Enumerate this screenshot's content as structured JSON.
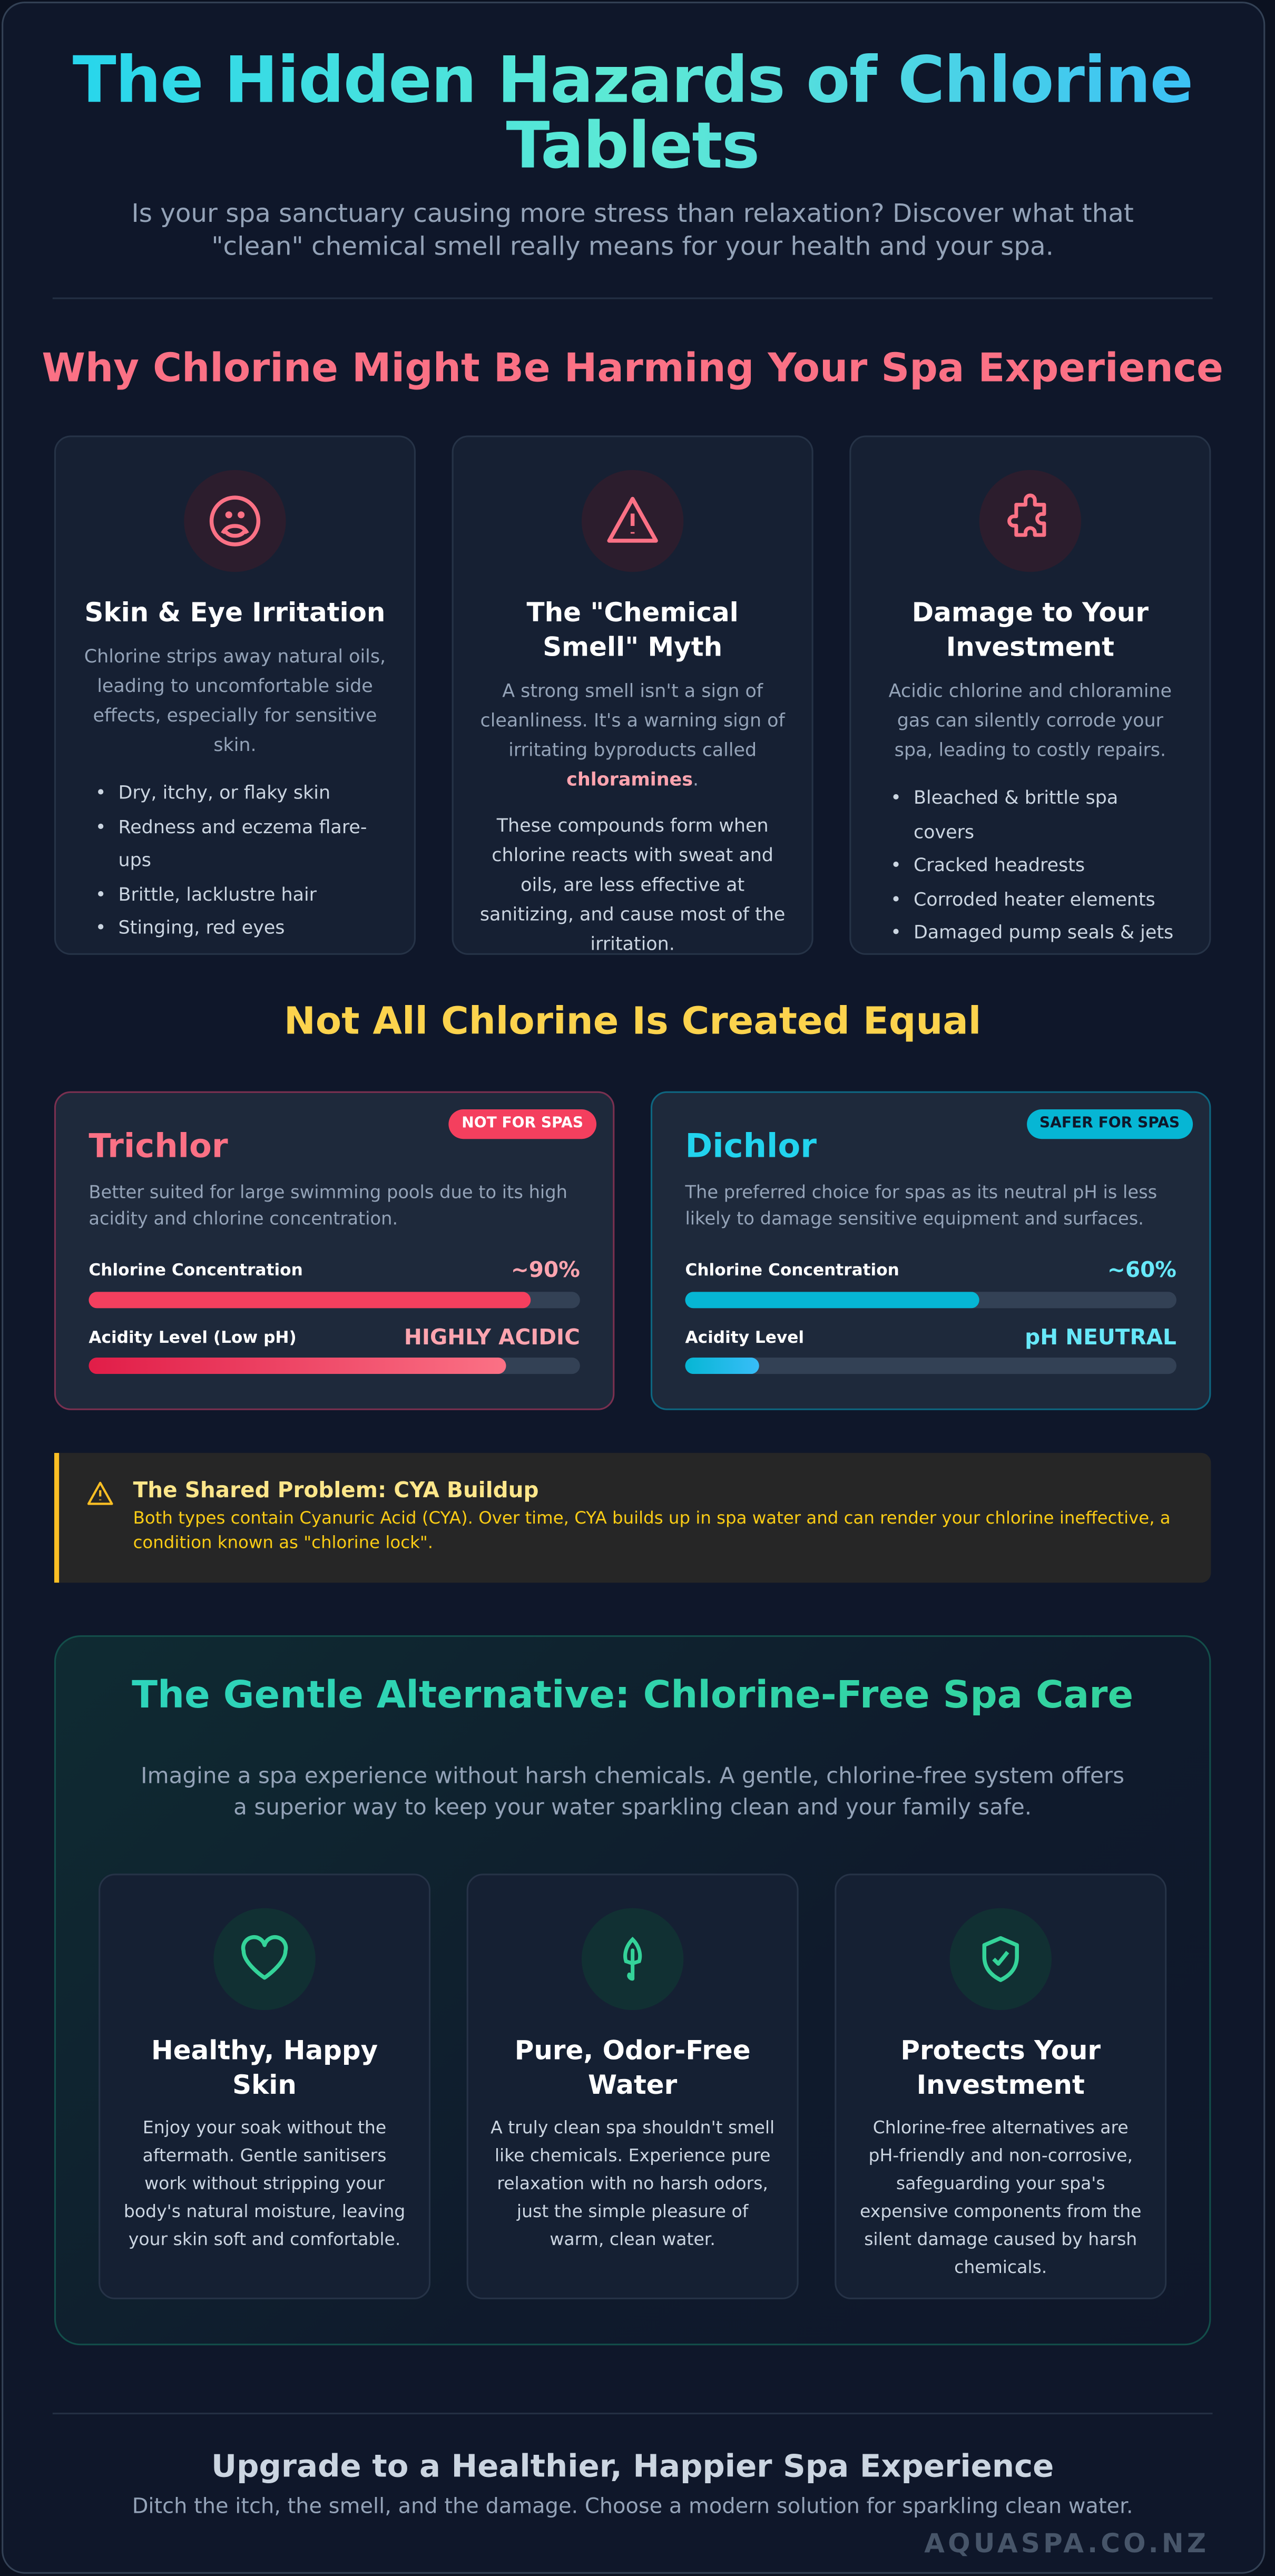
{
  "header": {
    "title": "The Hidden Hazards of Chlorine Tablets",
    "subtitle": "Is your spa sanctuary causing more stress than relaxation? Discover what that \"clean\" chemical smell really means for your health and your spa."
  },
  "harms": {
    "heading": "Why Chlorine Might Be Harming Your Spa Experience",
    "cards": [
      {
        "icon": "sad-face-icon",
        "title": "Skin & Eye Irritation",
        "body": "Chlorine strips away natural oils, leading to uncomfortable side effects, especially for sensitive skin.",
        "bullets": [
          "Dry, itchy, or flaky skin",
          "Redness and eczema flare-ups",
          "Brittle, lacklustre hair",
          "Stinging, red eyes"
        ]
      },
      {
        "icon": "warning-icon",
        "title": "The \"Chemical Smell\" Myth",
        "body_pre": "A strong smell isn't a sign of cleanliness. It's a warning sign of irritating byproducts called ",
        "body_em": "chloramines",
        "body_post": ".",
        "body2": "These compounds form when chlorine reacts with sweat and oils, are less effective at sanitizing, and cause most of the irritation."
      },
      {
        "icon": "puzzle-icon",
        "title": "Damage to Your Investment",
        "body": "Acidic chlorine and chloramine gas can silently corrode your spa, leading to costly repairs.",
        "bullets": [
          "Bleached & brittle spa covers",
          "Cracked headrests",
          "Corroded heater elements",
          "Damaged pump seals & jets"
        ]
      }
    ]
  },
  "compare": {
    "heading": "Not All Chlorine Is Created Equal",
    "trichlor": {
      "badge": "NOT FOR SPAS",
      "title": "Trichlor",
      "desc": "Better suited for large swimming pools due to its high acidity and chlorine concentration.",
      "label1": "Chlorine Concentration",
      "value1": "~90%",
      "fill1": 90,
      "label2": "Acidity Level (Low pH)",
      "value2": "HIGHLY ACIDIC",
      "fill2": 85
    },
    "dichlor": {
      "badge": "SAFER FOR SPAS",
      "title": "Dichlor",
      "desc": "The preferred choice for spas as its neutral pH is less likely to damage sensitive equipment and surfaces.",
      "label1": "Chlorine Concentration",
      "value1": "~60%",
      "fill1": 60,
      "label2": "Acidity Level",
      "value2": "pH NEUTRAL",
      "fill2": 15
    }
  },
  "alert": {
    "title": "The Shared Problem: CYA Buildup",
    "body": "Both types contain Cyanuric Acid (CYA). Over time, CYA builds up in spa water and can render your chlorine ineffective, a condition known as \"chlorine lock\"."
  },
  "alternative": {
    "heading": "The Gentle Alternative: Chlorine-Free Spa Care",
    "intro": "Imagine a spa experience without harsh chemicals. A gentle, chlorine-free system offers a superior way to keep your water sparkling clean and your family safe.",
    "cards": [
      {
        "icon": "heart-icon",
        "title": "Healthy, Happy Skin",
        "body": "Enjoy your soak without the aftermath. Gentle sanitisers work without stripping your body's natural moisture, leaving your skin soft and comfortable."
      },
      {
        "icon": "leaf-icon",
        "title": "Pure, Odor-Free Water",
        "body": "A truly clean spa shouldn't smell like chemicals. Experience pure relaxation with no harsh odors, just the simple pleasure of warm, clean water."
      },
      {
        "icon": "shield-check-icon",
        "title": "Protects Your Investment",
        "body": "Chlorine-free alternatives are pH-friendly and non-corrosive, safeguarding your spa's expensive components from the silent damage caused by harsh chemicals."
      }
    ]
  },
  "footer": {
    "heading": "Upgrade to a Healthier, Happier Spa Experience",
    "sub": "Ditch the itch, the smell, and the damage. Choose a modern solution for sparkling clean water.",
    "watermark": "AQUASPA.CO.NZ"
  },
  "colors": {
    "pink": "#fb7185",
    "yellow": "#fcd34d",
    "cyan": "#22d3ee",
    "green": "#34d399"
  }
}
